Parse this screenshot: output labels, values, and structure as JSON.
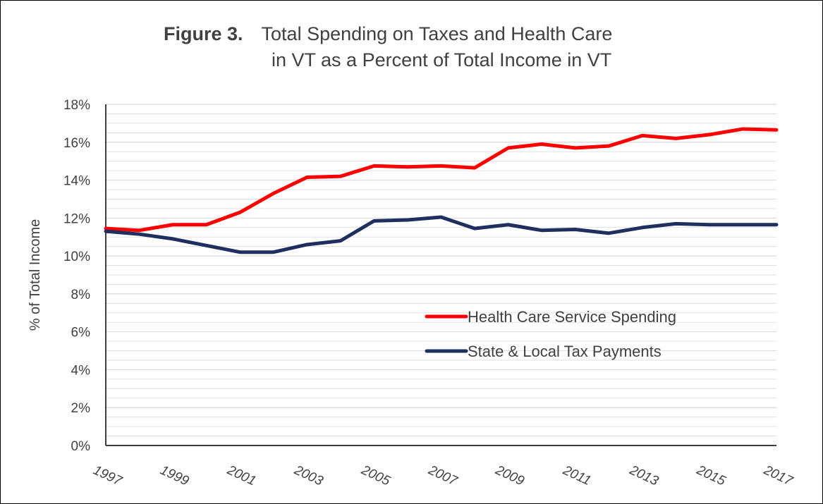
{
  "title": {
    "figure_label": "Figure 3.",
    "line1": "Total Spending on Taxes and Health Care",
    "line2": "in VT as a Percent of Total Income in VT"
  },
  "colors": {
    "health": "#ff0000",
    "tax": "#1f2f5f",
    "grid": "#d9d9d9",
    "axis": "#000000",
    "text": "#404040"
  },
  "chart_data": {
    "type": "line",
    "title": "Total Spending on Taxes and Health Care in VT as a Percent of Total Income in VT",
    "xlabel": "",
    "ylabel": "% of Total Income",
    "ylim": [
      0,
      18
    ],
    "y_ticks": [
      "0%",
      "2%",
      "4%",
      "6%",
      "8%",
      "10%",
      "12%",
      "14%",
      "16%",
      "18%"
    ],
    "x_tick_labels": [
      "1997",
      "1999",
      "2001",
      "2003",
      "2005",
      "2007",
      "2009",
      "2011",
      "2013",
      "2015",
      "2017"
    ],
    "x": [
      1997,
      1998,
      1999,
      2000,
      2001,
      2002,
      2003,
      2004,
      2005,
      2006,
      2007,
      2008,
      2009,
      2010,
      2011,
      2012,
      2013,
      2014,
      2015,
      2016,
      2017
    ],
    "grid": true,
    "legend_position": "center-right",
    "series": [
      {
        "name": "Health Care Service Spending",
        "color": "#ff0000",
        "values": [
          11.45,
          11.35,
          11.65,
          11.65,
          12.3,
          13.3,
          14.15,
          14.2,
          14.75,
          14.7,
          14.75,
          14.65,
          15.7,
          15.9,
          15.7,
          15.8,
          16.35,
          16.2,
          16.4,
          16.7,
          16.65
        ]
      },
      {
        "name": "State & Local Tax Payments",
        "color": "#1f2f5f",
        "values": [
          11.3,
          11.15,
          10.9,
          10.55,
          10.2,
          10.2,
          10.6,
          10.8,
          11.85,
          11.9,
          12.05,
          11.45,
          11.65,
          11.35,
          11.4,
          11.2,
          11.5,
          11.7,
          11.65,
          11.65,
          11.65
        ]
      }
    ]
  }
}
